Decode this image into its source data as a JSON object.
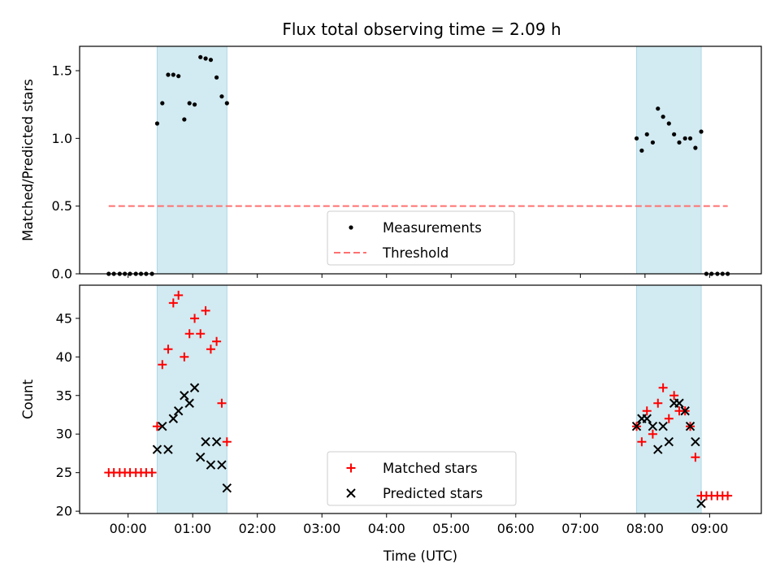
{
  "title": "Flux total observing time = 2.09 h",
  "chart_data": [
    {
      "type": "scatter",
      "panel": "top",
      "ylabel": "Matched/Predicted stars",
      "ylim": [
        0,
        1.68
      ],
      "yticks": [
        0.0,
        0.5,
        1.0,
        1.5
      ],
      "ytick_labels": [
        "0.0",
        "0.5",
        "1.0",
        "1.5"
      ],
      "legend_location": "lower-center",
      "highlight_spans_hours": [
        [
          0.45,
          1.53
        ],
        [
          7.87,
          8.87
        ]
      ],
      "highlight_color": "#add8e6",
      "series": [
        {
          "name": "Measurements",
          "marker": "dot",
          "color": "#000000",
          "points": [
            [
              -0.3,
              0
            ],
            [
              -0.22,
              0
            ],
            [
              -0.13,
              0
            ],
            [
              -0.05,
              0
            ],
            [
              0.03,
              0
            ],
            [
              0.12,
              0
            ],
            [
              0.2,
              0
            ],
            [
              0.28,
              0
            ],
            [
              0.37,
              0
            ],
            [
              0.45,
              1.11
            ],
            [
              0.53,
              1.26
            ],
            [
              0.62,
              1.47
            ],
            [
              0.7,
              1.47
            ],
            [
              0.78,
              1.46
            ],
            [
              0.87,
              1.14
            ],
            [
              0.95,
              1.26
            ],
            [
              1.03,
              1.25
            ],
            [
              1.12,
              1.6
            ],
            [
              1.2,
              1.59
            ],
            [
              1.28,
              1.58
            ],
            [
              1.37,
              1.45
            ],
            [
              1.45,
              1.31
            ],
            [
              1.53,
              1.26
            ],
            [
              7.87,
              1.0
            ],
            [
              7.95,
              0.91
            ],
            [
              8.03,
              1.03
            ],
            [
              8.12,
              0.97
            ],
            [
              8.2,
              1.22
            ],
            [
              8.28,
              1.16
            ],
            [
              8.37,
              1.11
            ],
            [
              8.45,
              1.03
            ],
            [
              8.53,
              0.97
            ],
            [
              8.62,
              1.0
            ],
            [
              8.7,
              1.0
            ],
            [
              8.78,
              0.93
            ],
            [
              8.87,
              1.05
            ],
            [
              8.95,
              0
            ],
            [
              9.03,
              0
            ],
            [
              9.12,
              0
            ],
            [
              9.2,
              0
            ],
            [
              9.28,
              0
            ]
          ]
        },
        {
          "name": "Threshold",
          "style": "dashed",
          "color": "#ff7070",
          "x": [
            -0.3,
            9.28
          ],
          "y": [
            0.5,
            0.5
          ]
        }
      ]
    },
    {
      "type": "scatter",
      "panel": "bottom",
      "xlabel": "Time (UTC)",
      "ylabel": "Count",
      "ylim": [
        19.7,
        49.3
      ],
      "xlim": [
        -0.75,
        9.8
      ],
      "yticks": [
        20,
        25,
        30,
        35,
        40,
        45
      ],
      "ytick_labels": [
        "20",
        "25",
        "30",
        "35",
        "40",
        "45"
      ],
      "xticks_hours": [
        0,
        1,
        2,
        3,
        4,
        5,
        6,
        7,
        8,
        9
      ],
      "xtick_labels": [
        "00:00",
        "01:00",
        "02:00",
        "03:00",
        "04:00",
        "05:00",
        "06:00",
        "07:00",
        "08:00",
        "09:00"
      ],
      "legend_location": "lower-center",
      "highlight_spans_hours": [
        [
          0.45,
          1.53
        ],
        [
          7.87,
          8.87
        ]
      ],
      "highlight_color": "#add8e6",
      "series": [
        {
          "name": "Matched stars",
          "marker": "plus",
          "color": "#ff0000",
          "points": [
            [
              -0.3,
              25
            ],
            [
              -0.22,
              25
            ],
            [
              -0.13,
              25
            ],
            [
              -0.05,
              25
            ],
            [
              0.03,
              25
            ],
            [
              0.12,
              25
            ],
            [
              0.2,
              25
            ],
            [
              0.28,
              25
            ],
            [
              0.37,
              25
            ],
            [
              0.45,
              31
            ],
            [
              0.53,
              39
            ],
            [
              0.62,
              41
            ],
            [
              0.7,
              47
            ],
            [
              0.78,
              48
            ],
            [
              0.87,
              40
            ],
            [
              0.95,
              43
            ],
            [
              1.03,
              45
            ],
            [
              1.12,
              43
            ],
            [
              1.2,
              46
            ],
            [
              1.28,
              41
            ],
            [
              1.37,
              42
            ],
            [
              1.45,
              34
            ],
            [
              1.53,
              29
            ],
            [
              7.87,
              31
            ],
            [
              7.95,
              29
            ],
            [
              8.03,
              33
            ],
            [
              8.12,
              30
            ],
            [
              8.2,
              34
            ],
            [
              8.28,
              36
            ],
            [
              8.37,
              32
            ],
            [
              8.45,
              35
            ],
            [
              8.53,
              33
            ],
            [
              8.62,
              33
            ],
            [
              8.7,
              31
            ],
            [
              8.78,
              27
            ],
            [
              8.87,
              22
            ],
            [
              8.95,
              22
            ],
            [
              9.03,
              22
            ],
            [
              9.12,
              22
            ],
            [
              9.2,
              22
            ],
            [
              9.28,
              22
            ]
          ]
        },
        {
          "name": "Predicted stars",
          "marker": "x",
          "color": "#000000",
          "points": [
            [
              0.45,
              28
            ],
            [
              0.53,
              31
            ],
            [
              0.62,
              28
            ],
            [
              0.7,
              32
            ],
            [
              0.78,
              33
            ],
            [
              0.87,
              35
            ],
            [
              0.95,
              34
            ],
            [
              1.03,
              36
            ],
            [
              1.12,
              27
            ],
            [
              1.2,
              29
            ],
            [
              1.28,
              26
            ],
            [
              1.37,
              29
            ],
            [
              1.45,
              26
            ],
            [
              1.53,
              23
            ],
            [
              7.87,
              31
            ],
            [
              7.95,
              32
            ],
            [
              8.03,
              32
            ],
            [
              8.12,
              31
            ],
            [
              8.2,
              28
            ],
            [
              8.28,
              31
            ],
            [
              8.37,
              29
            ],
            [
              8.45,
              34
            ],
            [
              8.53,
              34
            ],
            [
              8.62,
              33
            ],
            [
              8.7,
              31
            ],
            [
              8.78,
              29
            ],
            [
              8.87,
              21
            ]
          ]
        }
      ]
    }
  ]
}
